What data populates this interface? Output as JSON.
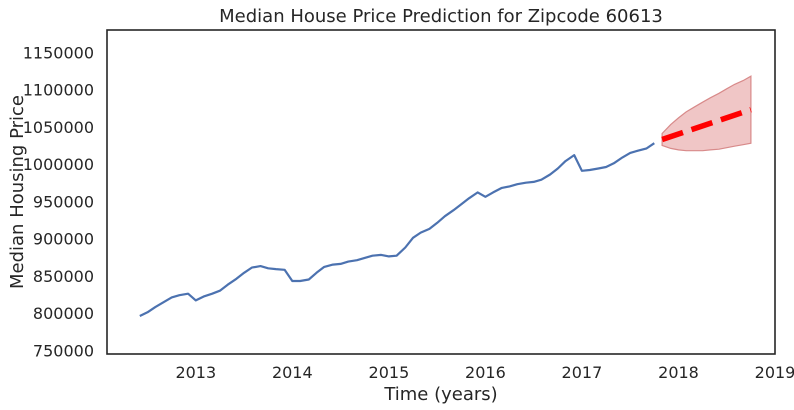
{
  "chart_data": {
    "type": "line",
    "title": "Median House Price Prediction for Zipcode 60613",
    "xlabel": "Time (years)",
    "ylabel": "Median Housing Price",
    "xlim": [
      2012.08,
      2019.0
    ],
    "ylim": [
      745000,
      1180000
    ],
    "xticks": [
      2013,
      2014,
      2015,
      2016,
      2017,
      2018,
      2019
    ],
    "yticks": [
      750000,
      800000,
      850000,
      900000,
      950000,
      1000000,
      1050000,
      1100000,
      1150000
    ],
    "grid": false,
    "legend": "none",
    "series": [
      {
        "color": "#4c72b0",
        "style": "solid",
        "x": [
          2012.42,
          2012.5,
          2012.58,
          2012.67,
          2012.75,
          2012.83,
          2012.92,
          2013.0,
          2013.08,
          2013.17,
          2013.25,
          2013.33,
          2013.42,
          2013.5,
          2013.58,
          2013.67,
          2013.75,
          2013.83,
          2013.92,
          2014.0,
          2014.08,
          2014.17,
          2014.25,
          2014.33,
          2014.42,
          2014.5,
          2014.58,
          2014.67,
          2014.75,
          2014.83,
          2014.92,
          2015.0,
          2015.08,
          2015.17,
          2015.25,
          2015.33,
          2015.42,
          2015.5,
          2015.58,
          2015.67,
          2015.75,
          2015.83,
          2015.92,
          2016.0,
          2016.08,
          2016.17,
          2016.25,
          2016.33,
          2016.42,
          2016.5,
          2016.58,
          2016.67,
          2016.75,
          2016.83,
          2016.92,
          2017.0,
          2017.08,
          2017.17,
          2017.25,
          2017.33,
          2017.42,
          2017.5,
          2017.58,
          2017.67,
          2017.75
        ],
        "values": [
          796000,
          801000,
          808000,
          815000,
          821000,
          824000,
          826000,
          817000,
          822000,
          826000,
          830000,
          838000,
          846000,
          854000,
          861000,
          863000,
          860000,
          859000,
          858000,
          843000,
          843000,
          845000,
          854000,
          862000,
          865000,
          866000,
          869000,
          871000,
          874000,
          877000,
          878000,
          876000,
          877000,
          888000,
          901000,
          908000,
          913000,
          921000,
          930000,
          938000,
          946000,
          954000,
          962000,
          956000,
          962000,
          968000,
          970000,
          973000,
          975000,
          976000,
          979000,
          986000,
          994000,
          1004000,
          1012000,
          991000,
          992000,
          994000,
          996000,
          1001000,
          1009000,
          1015000,
          1018000,
          1021000,
          1028000
        ]
      },
      {
        "color": "#ff0000",
        "style": "dashed",
        "x": [
          2017.83,
          2018.75
        ],
        "values": [
          1033000,
          1073000
        ]
      }
    ],
    "confidence_band": {
      "color": "#e8a8a8",
      "x": [
        2017.83,
        2017.92,
        2018.0,
        2018.08,
        2018.17,
        2018.25,
        2018.33,
        2018.42,
        2018.5,
        2018.58,
        2018.67,
        2018.75
      ],
      "lower": [
        1025000,
        1021000,
        1019000,
        1018000,
        1018000,
        1018000,
        1019000,
        1020000,
        1022000,
        1024000,
        1026000,
        1028000
      ],
      "upper": [
        1041000,
        1053000,
        1062000,
        1070000,
        1077000,
        1083000,
        1089000,
        1095000,
        1101000,
        1107000,
        1112000,
        1118000
      ]
    }
  }
}
